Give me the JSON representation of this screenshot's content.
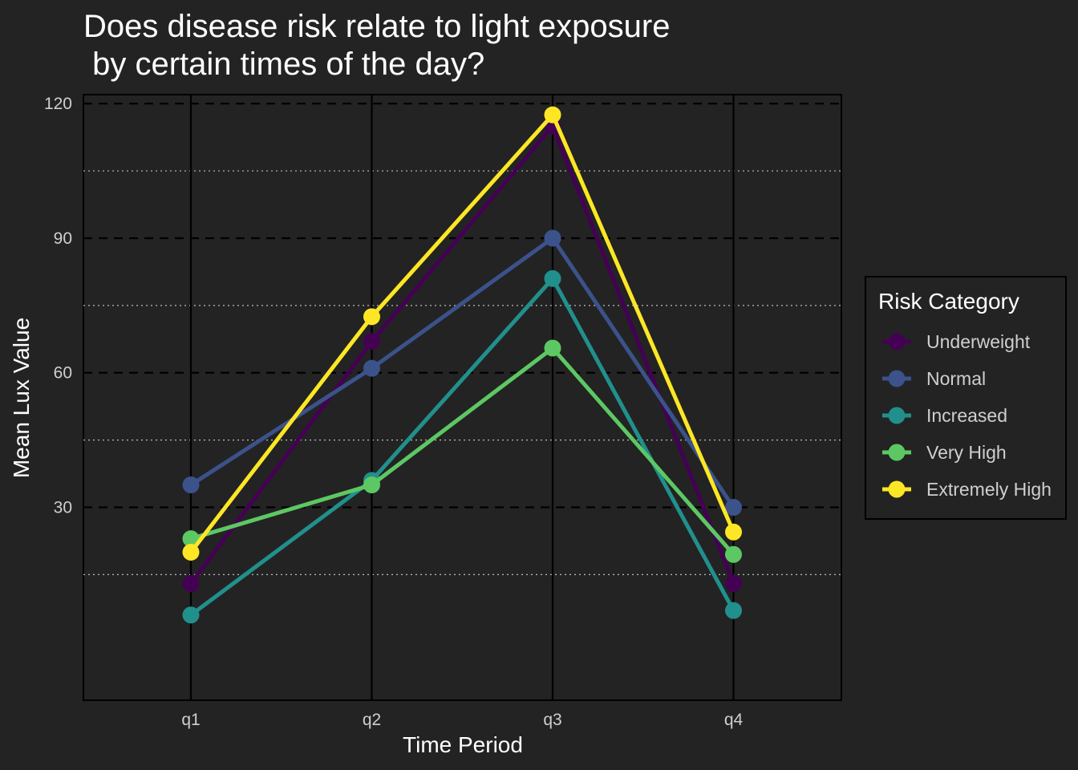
{
  "chart_data": {
    "type": "line",
    "title_lines": [
      "Does disease risk relate to light exposure",
      " by certain times of the day?"
    ],
    "xlabel": "Time Period",
    "ylabel": "Mean Lux Value",
    "categories": [
      "q1",
      "q2",
      "q3",
      "q4"
    ],
    "ylim": [
      -13,
      122
    ],
    "yticks": [
      30,
      60,
      90,
      120
    ],
    "yticks_minor": [
      15,
      45,
      75,
      105
    ],
    "grid": true,
    "legend": {
      "title": "Risk Category",
      "placement": "right"
    },
    "series": [
      {
        "name": "Underweight",
        "color": "#440154",
        "values": [
          13,
          67,
          115,
          13
        ]
      },
      {
        "name": "Normal",
        "color": "#3b528b",
        "values": [
          35,
          61,
          90,
          30
        ]
      },
      {
        "name": "Increased",
        "color": "#21908c",
        "values": [
          6,
          36,
          81,
          7
        ]
      },
      {
        "name": "Very High",
        "color": "#5dc863",
        "values": [
          23,
          35,
          65.5,
          19.5
        ]
      },
      {
        "name": "Extremely High",
        "color": "#fde725",
        "values": [
          20,
          72.5,
          117.5,
          24.5
        ]
      }
    ]
  }
}
